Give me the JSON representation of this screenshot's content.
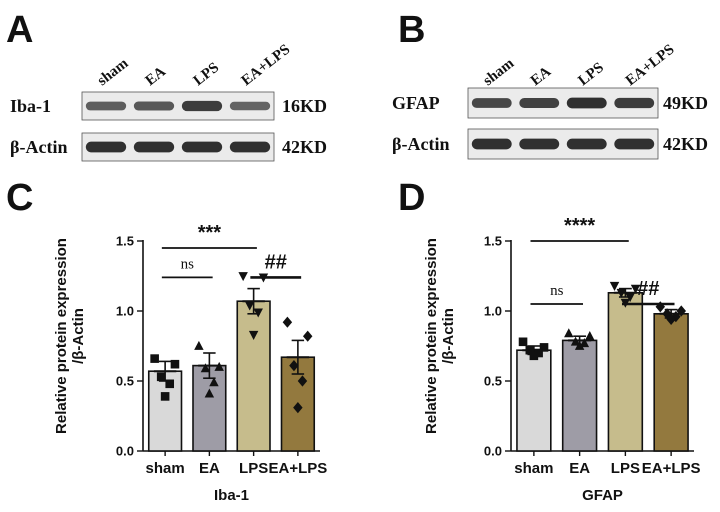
{
  "panels": {
    "A": "A",
    "B": "B",
    "C": "C",
    "D": "D"
  },
  "blots": [
    {
      "lanes": [
        "sham",
        "EA",
        "LPS",
        "EA+LPS"
      ],
      "rows": [
        {
          "label": "Iba-1",
          "size": "16KD",
          "intensity": [
            0.55,
            0.6,
            0.85,
            0.5
          ]
        },
        {
          "label": "β-Actin",
          "size": "42KD",
          "intensity": [
            0.95,
            0.95,
            0.95,
            0.95
          ]
        }
      ]
    },
    {
      "lanes": [
        "sham",
        "EA",
        "LPS",
        "EA+LPS"
      ],
      "rows": [
        {
          "label": "GFAP",
          "size": "49KD",
          "intensity": [
            0.75,
            0.8,
            0.95,
            0.85
          ]
        },
        {
          "label": "β-Actin",
          "size": "42KD",
          "intensity": [
            0.95,
            0.95,
            0.95,
            0.95
          ]
        }
      ]
    }
  ],
  "chart_data": [
    {
      "type": "bar",
      "categories": [
        "sham",
        "EA",
        "LPS",
        "EA+LPS"
      ],
      "values": [
        0.57,
        0.61,
        1.07,
        0.67
      ],
      "errors": [
        0.07,
        0.09,
        0.09,
        0.12
      ],
      "points": [
        [
          0.66,
          0.62,
          0.53,
          0.48,
          0.39
        ],
        [
          0.75,
          0.6,
          0.59,
          0.49,
          0.41
        ],
        [
          1.25,
          1.24,
          1.04,
          0.99,
          0.83
        ],
        [
          0.92,
          0.82,
          0.61,
          0.5,
          0.31
        ]
      ],
      "markers": [
        "square",
        "triangle-up",
        "triangle-down",
        "diamond"
      ],
      "colors": [
        "#d9d9d9",
        "#9e9ca6",
        "#c6bc8c",
        "#93793e"
      ],
      "ylabel": "Relative protein expression\n/β-Actin",
      "xlabel": "Iba-1",
      "ylim": [
        0,
        1.5
      ],
      "yticks": [
        "0.0",
        "0.5",
        "1.0",
        "1.5"
      ],
      "significance": [
        {
          "pair": [
            0,
            2
          ],
          "text": "***",
          "level": 1.45
        },
        {
          "pair": [
            0,
            1
          ],
          "text": "ns",
          "level": 1.24
        },
        {
          "pair": [
            2,
            3
          ],
          "text": "##",
          "level": 1.24
        }
      ]
    },
    {
      "type": "bar",
      "categories": [
        "sham",
        "EA",
        "LPS",
        "EA+LPS"
      ],
      "values": [
        0.72,
        0.79,
        1.13,
        0.98
      ],
      "errors": [
        0.03,
        0.03,
        0.03,
        0.03
      ],
      "points": [
        [
          0.78,
          0.74,
          0.72,
          0.7,
          0.68
        ],
        [
          0.84,
          0.82,
          0.78,
          0.77,
          0.75
        ],
        [
          1.18,
          1.16,
          1.13,
          1.1,
          1.06
        ],
        [
          1.03,
          1.0,
          0.98,
          0.96,
          0.94
        ]
      ],
      "markers": [
        "square",
        "triangle-up",
        "triangle-down",
        "diamond"
      ],
      "colors": [
        "#d9d9d9",
        "#9e9ca6",
        "#c6bc8c",
        "#93793e"
      ],
      "ylabel": "Relative protein expression\n/β-Actin",
      "xlabel": "GFAP",
      "ylim": [
        0,
        1.5
      ],
      "yticks": [
        "0.0",
        "0.5",
        "1.0",
        "1.5"
      ],
      "significance": [
        {
          "pair": [
            0,
            2
          ],
          "text": "****",
          "level": 1.5
        },
        {
          "pair": [
            0,
            1
          ],
          "text": "ns",
          "level": 1.05
        },
        {
          "pair": [
            2,
            3
          ],
          "text": "##",
          "level": 1.05
        }
      ]
    }
  ]
}
